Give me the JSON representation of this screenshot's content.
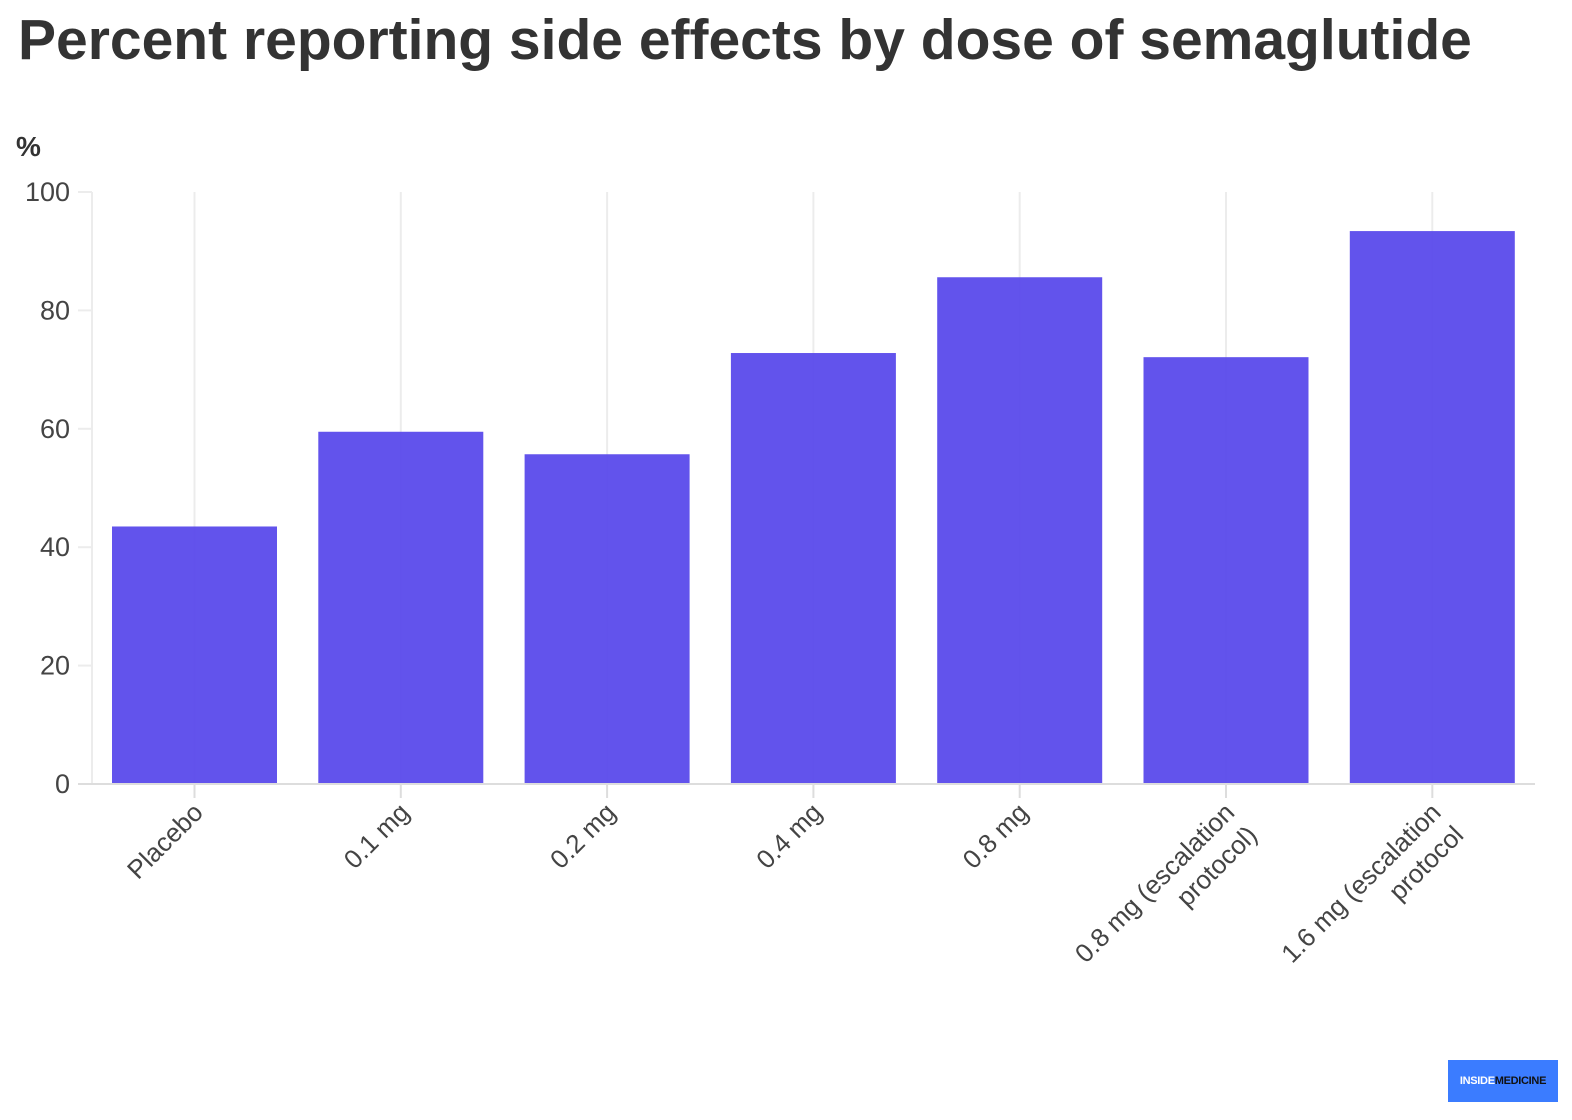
{
  "title": "Percent reporting side effects by dose of semaglutide",
  "unit_label": "%",
  "colors": {
    "bar": "#5a4aeb",
    "grid": "#ececec",
    "baseline": "#dddddd",
    "logo_bg": "#3b7cff"
  },
  "logo": {
    "part1": "INSIDE",
    "part2": "MEDICINE"
  },
  "chart_data": {
    "type": "bar",
    "categories": [
      "Placebo",
      "0.1 mg",
      "0.2 mg",
      "0.4 mg",
      "0.8 mg",
      "0.8 mg (escalation protocol)",
      "1.6 mg (escalation protocol"
    ],
    "category_label_lines": [
      [
        "Placebo"
      ],
      [
        "0.1 mg"
      ],
      [
        "0.2 mg"
      ],
      [
        "0.4 mg"
      ],
      [
        "0.8 mg"
      ],
      [
        "0.8 mg (escalation",
        "protocol)"
      ],
      [
        "1.6 mg (escalation",
        "protocol"
      ]
    ],
    "values": [
      43.5,
      59.5,
      55.7,
      72.8,
      85.6,
      72.1,
      93.4
    ],
    "ylim": [
      0,
      100
    ],
    "yticks": [
      0,
      20,
      40,
      60,
      80,
      100
    ],
    "title": "Percent reporting side effects by dose of semaglutide",
    "xlabel": "",
    "ylabel": "%",
    "grid": true,
    "legend": "none"
  }
}
